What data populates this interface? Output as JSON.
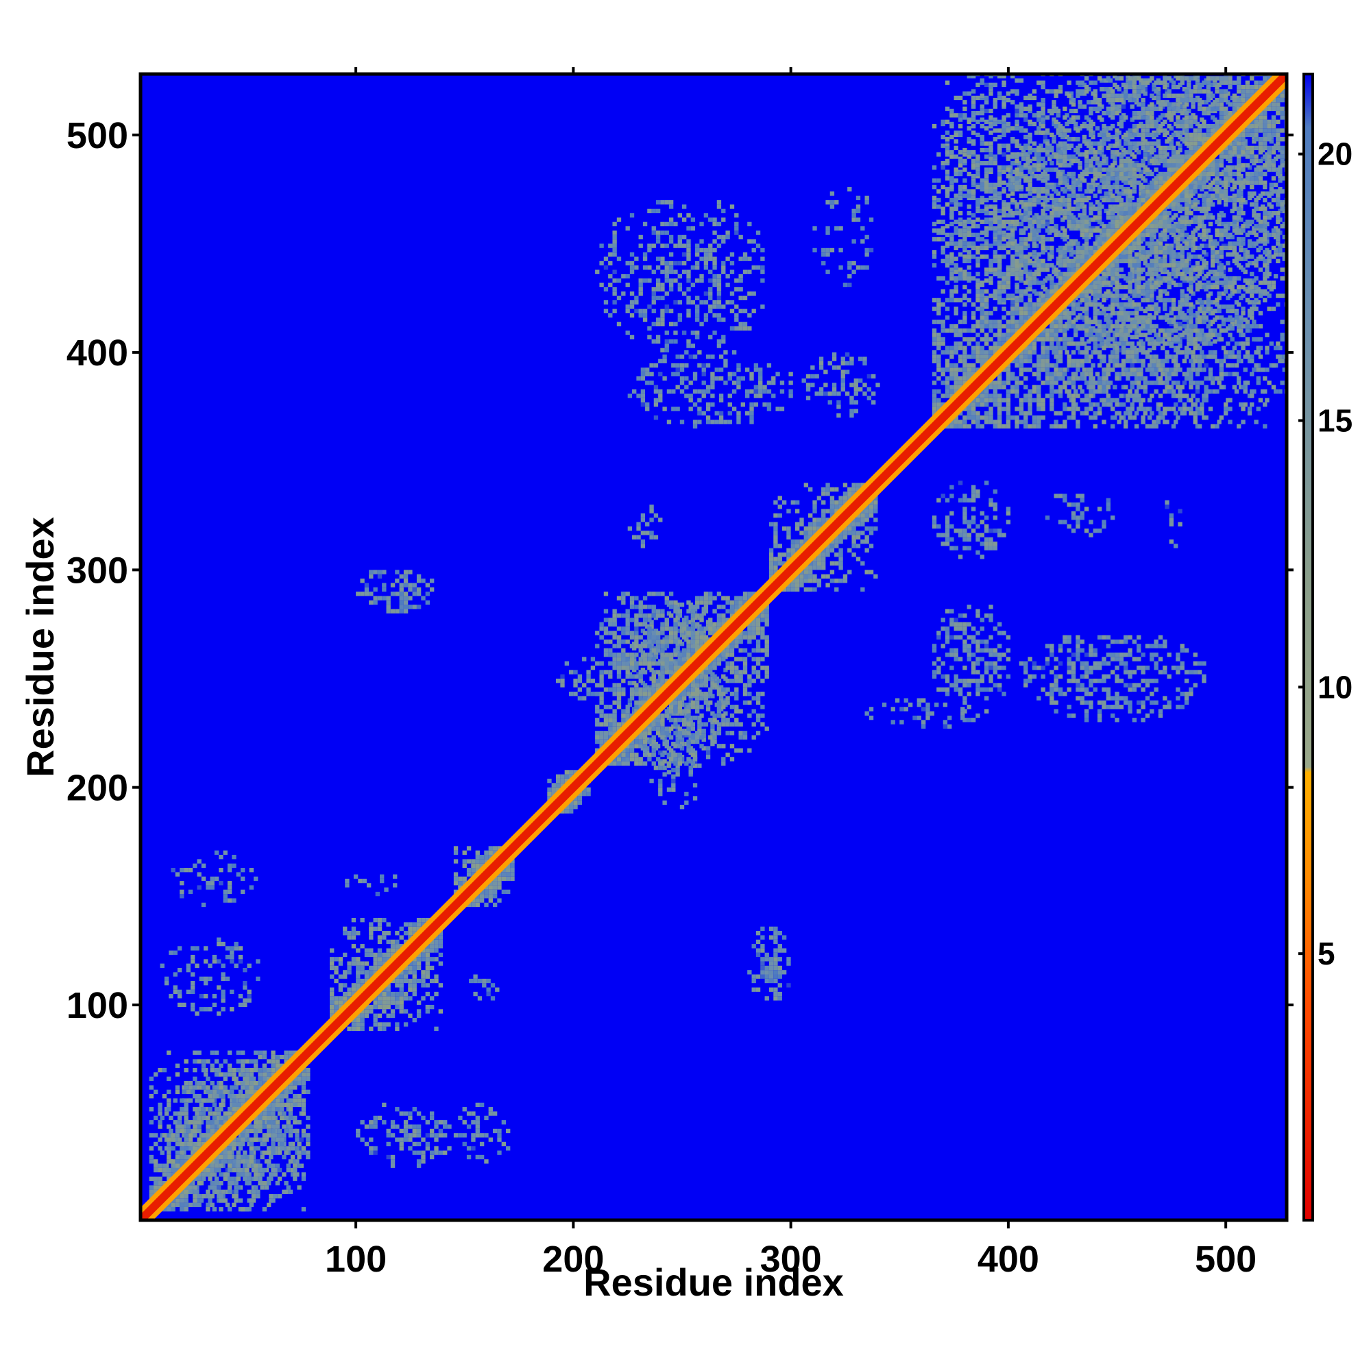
{
  "chart_data": {
    "type": "heatmap",
    "title": "",
    "xlabel": "Residue index",
    "ylabel": "Residue index",
    "xlim": [
      1,
      528
    ],
    "ylim": [
      1,
      528
    ],
    "x_ticks": [
      100,
      200,
      300,
      400,
      500
    ],
    "y_ticks": [
      100,
      200,
      300,
      400,
      500
    ],
    "colorbar": {
      "range": [
        0,
        21.5
      ],
      "ticks": [
        5,
        10,
        15,
        20
      ],
      "stops": [
        {
          "value": 0,
          "color": "#e00000"
        },
        {
          "value": 4,
          "color": "#ff4a00"
        },
        {
          "value": 6.5,
          "color": "#ff8c00"
        },
        {
          "value": 8.4,
          "color": "#ffb000"
        },
        {
          "value": 8.5,
          "color": "#9aa88a"
        },
        {
          "value": 12,
          "color": "#8a9e8a"
        },
        {
          "value": 17,
          "color": "#6a8fb0"
        },
        {
          "value": 20.5,
          "color": "#4f7cc0"
        },
        {
          "value": 21.5,
          "color": "#0000f0"
        }
      ]
    },
    "background_color": "#0000f5",
    "diagonal_color": "#e81e00",
    "domains": [
      {
        "start": 5,
        "end": 78
      },
      {
        "start": 88,
        "end": 140
      },
      {
        "start": 145,
        "end": 172
      },
      {
        "start": 188,
        "end": 208
      },
      {
        "start": 210,
        "end": 290
      },
      {
        "start": 290,
        "end": 340
      },
      {
        "start": 365,
        "end": 528
      }
    ],
    "contact_patches": [
      {
        "x": [
          10,
          75
        ],
        "y": [
          5,
          70
        ],
        "density": 0.6
      },
      {
        "x": [
          100,
          145
        ],
        "y": [
          25,
          55
        ],
        "density": 0.4
      },
      {
        "x": [
          145,
          170
        ],
        "y": [
          25,
          55
        ],
        "density": 0.4
      },
      {
        "x": [
          10,
          55
        ],
        "y": [
          95,
          130
        ],
        "density": 0.3
      },
      {
        "x": [
          15,
          55
        ],
        "y": [
          145,
          170
        ],
        "density": 0.3
      },
      {
        "x": [
          95,
          120
        ],
        "y": [
          150,
          160
        ],
        "density": 0.3
      },
      {
        "x": [
          150,
          165
        ],
        "y": [
          100,
          115
        ],
        "density": 0.3
      },
      {
        "x": [
          280,
          300
        ],
        "y": [
          100,
          135
        ],
        "density": 0.6
      },
      {
        "x": [
          100,
          135
        ],
        "y": [
          280,
          300
        ],
        "density": 0.6
      },
      {
        "x": [
          225,
          270
        ],
        "y": [
          205,
          285
        ],
        "density": 0.5
      },
      {
        "x": [
          210,
          250
        ],
        "y": [
          250,
          290
        ],
        "density": 0.5
      },
      {
        "x": [
          225,
          300
        ],
        "y": [
          365,
          400
        ],
        "density": 0.4
      },
      {
        "x": [
          210,
          290
        ],
        "y": [
          400,
          470
        ],
        "density": 0.35
      },
      {
        "x": [
          305,
          340
        ],
        "y": [
          370,
          400
        ],
        "density": 0.4
      },
      {
        "x": [
          310,
          340
        ],
        "y": [
          430,
          475
        ],
        "density": 0.3
      },
      {
        "x": [
          365,
          400
        ],
        "y": [
          230,
          285
        ],
        "density": 0.5
      },
      {
        "x": [
          405,
          490
        ],
        "y": [
          230,
          270
        ],
        "density": 0.45
      },
      {
        "x": [
          365,
          400
        ],
        "y": [
          305,
          340
        ],
        "density": 0.45
      },
      {
        "x": [
          415,
          450
        ],
        "y": [
          315,
          335
        ],
        "density": 0.3
      },
      {
        "x": [
          470,
          480
        ],
        "y": [
          310,
          335
        ],
        "density": 0.3
      },
      {
        "x": [
          330,
          380
        ],
        "y": [
          225,
          240
        ],
        "density": 0.3
      },
      {
        "x": [
          225,
          240
        ],
        "y": [
          310,
          330
        ],
        "density": 0.3
      },
      {
        "x": [
          400,
          528
        ],
        "y": [
          400,
          528
        ],
        "density": 0.5
      },
      {
        "x": [
          365,
          420
        ],
        "y": [
          420,
          528
        ],
        "density": 0.4
      },
      {
        "x": [
          420,
          528
        ],
        "y": [
          365,
          420
        ],
        "density": 0.4
      },
      {
        "x": [
          190,
          215
        ],
        "y": [
          240,
          260
        ],
        "density": 0.35
      },
      {
        "x": [
          235,
          260
        ],
        "y": [
          190,
          215
        ],
        "density": 0.3
      }
    ]
  }
}
